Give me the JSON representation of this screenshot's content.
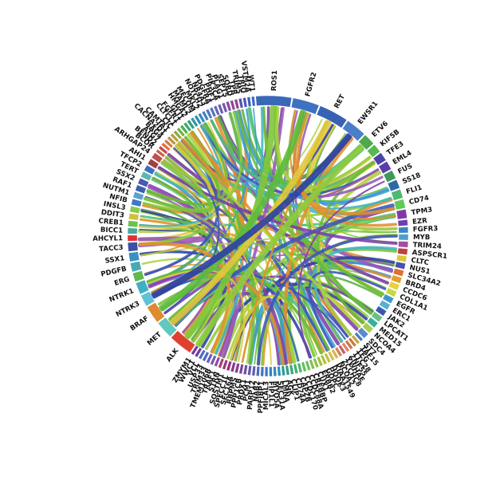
{
  "diagram": {
    "type": "chord",
    "segments": [
      {
        "name": "ROS1",
        "color": "#3a68b8",
        "weight": 12
      },
      {
        "name": "FGFR2",
        "color": "#3d72c0",
        "weight": 9
      },
      {
        "name": "RET",
        "color": "#3a62b4",
        "weight": 10
      },
      {
        "name": "EWSR1",
        "color": "#4a7ec8",
        "weight": 7
      },
      {
        "name": "ETV6",
        "color": "#4ea94c",
        "weight": 4
      },
      {
        "name": "KIF5B",
        "color": "#58b850",
        "weight": 3
      },
      {
        "name": "TFE3",
        "color": "#4a42a8",
        "weight": 3
      },
      {
        "name": "EML4",
        "color": "#5a3ea8",
        "weight": 3
      },
      {
        "name": "FUS",
        "color": "#3c9a5a",
        "weight": 3
      },
      {
        "name": "SS18",
        "color": "#2c6aa6",
        "weight": 3
      },
      {
        "name": "FLI1",
        "color": "#4db870",
        "weight": 3
      },
      {
        "name": "CD74",
        "color": "#5fcb50",
        "weight": 3
      },
      {
        "name": "TPM3",
        "color": "#7f3aa6",
        "weight": 3
      },
      {
        "name": "EZR",
        "color": "#6a3fae",
        "weight": 2
      },
      {
        "name": "FGFR3",
        "color": "#3a86c4",
        "weight": 2
      },
      {
        "name": "MYB",
        "color": "#4aa0c8",
        "weight": 2
      },
      {
        "name": "TRIM24",
        "color": "#a04fa0",
        "weight": 2
      },
      {
        "name": "ASPSCR1",
        "color": "#c04040",
        "weight": 2
      },
      {
        "name": "CLTC",
        "color": "#d9c83a",
        "weight": 2
      },
      {
        "name": "NUS1",
        "color": "#4a50b0",
        "weight": 2
      },
      {
        "name": "SLC34A2",
        "color": "#e07030",
        "weight": 2
      },
      {
        "name": "BRD4",
        "color": "#e0a030",
        "weight": 2
      },
      {
        "name": "CCDC6",
        "color": "#e8d040",
        "weight": 2
      },
      {
        "name": "COL1A1",
        "color": "#c8d840",
        "weight": 2
      },
      {
        "name": "EGFR",
        "color": "#3a9ac8",
        "weight": 2
      },
      {
        "name": "ERC1",
        "color": "#5ab0d0",
        "weight": 2
      },
      {
        "name": "JAK2",
        "color": "#3a58b0",
        "weight": 2
      },
      {
        "name": "LPCAT1",
        "color": "#6ac080",
        "weight": 2
      },
      {
        "name": "MED15",
        "color": "#3ab0a0",
        "weight": 2
      },
      {
        "name": "NCOA4",
        "color": "#a8d050",
        "weight": 2
      },
      {
        "name": "SDC4",
        "color": "#5a8ad0",
        "weight": 2
      },
      {
        "name": "ST7",
        "color": "#4080c0",
        "weight": 1
      },
      {
        "name": "TAF15",
        "color": "#d0a040",
        "weight": 1
      },
      {
        "name": "TFG",
        "color": "#c08040",
        "weight": 1
      },
      {
        "name": "TTC28",
        "color": "#d07050",
        "weight": 1
      },
      {
        "name": "ZNF55",
        "color": "#e08060",
        "weight": 1
      },
      {
        "name": "YWHAE",
        "color": "#c06070",
        "weight": 1
      },
      {
        "name": "ZCCHC8",
        "color": "#d08050",
        "weight": 1
      },
      {
        "name": "NCOA2",
        "color": "#e0b050",
        "weight": 1
      },
      {
        "name": "KIAA1549",
        "color": "#d0c050",
        "weight": 1
      },
      {
        "name": "HOOK3",
        "color": "#c0c040",
        "weight": 1
      },
      {
        "name": "GOPC",
        "color": "#b0c040",
        "weight": 1
      },
      {
        "name": "ERBB2",
        "color": "#a0c040",
        "weight": 1
      },
      {
        "name": "CUX1",
        "color": "#90c048",
        "weight": 1
      },
      {
        "name": "CREBBP",
        "color": "#80c050",
        "weight": 1
      },
      {
        "name": "CCDC88A",
        "color": "#70c058",
        "weight": 1
      },
      {
        "name": "CCDC170",
        "color": "#60c060",
        "weight": 1
      },
      {
        "name": "CAPZB",
        "color": "#50b868",
        "weight": 1
      },
      {
        "name": "CD74A",
        "color": "#40b070",
        "weight": 1
      },
      {
        "name": "CLIP1",
        "color": "#38a878",
        "weight": 1
      },
      {
        "name": "AGK",
        "color": "#30a080",
        "weight": 1
      },
      {
        "name": "LMNA",
        "color": "#3098a0",
        "weight": 1
      },
      {
        "name": "SEC31A",
        "color": "#3090b0",
        "weight": 1
      },
      {
        "name": "MYO5A",
        "color": "#3088c0",
        "weight": 1
      },
      {
        "name": "FIP1L1",
        "color": "#3080c8",
        "weight": 1
      },
      {
        "name": "MICAL3",
        "color": "#3a78c8",
        "weight": 1
      },
      {
        "name": "PPFIBP1",
        "color": "#4470c0",
        "weight": 1
      },
      {
        "name": "NAB2",
        "color": "#4e68b8",
        "weight": 1
      },
      {
        "name": "PARP12",
        "color": "#5860b0",
        "weight": 1
      },
      {
        "name": "PCM1",
        "color": "#6258a8",
        "weight": 1
      },
      {
        "name": "PRDX1",
        "color": "#6c50a0",
        "weight": 1
      },
      {
        "name": "PPP1CB",
        "color": "#764898",
        "weight": 1
      },
      {
        "name": "RBPMS",
        "color": "#804090",
        "weight": 1
      },
      {
        "name": "SEC16A",
        "color": "#8a3888",
        "weight": 1
      },
      {
        "name": "SPECC1L",
        "color": "#943080",
        "weight": 1
      },
      {
        "name": "SQSTM1",
        "color": "#9e3878",
        "weight": 1
      },
      {
        "name": "STRN",
        "color": "#a84070",
        "weight": 1
      },
      {
        "name": "TRAF1",
        "color": "#8850a8",
        "weight": 1
      },
      {
        "name": "TMEM106B",
        "color": "#7858b0",
        "weight": 1
      },
      {
        "name": "TRIM33",
        "color": "#6860b8",
        "weight": 1
      },
      {
        "name": "USP33",
        "color": "#5868c0",
        "weight": 1
      },
      {
        "name": "VCL",
        "color": "#4870c8",
        "weight": 1
      },
      {
        "name": "WWC1",
        "color": "#6a40a0",
        "weight": 1
      },
      {
        "name": "ZMYM1",
        "color": "#7a38a0",
        "weight": 1
      },
      {
        "name": "ALK",
        "color": "#e04030",
        "weight": 8
      },
      {
        "name": "MET",
        "color": "#60c8c0",
        "weight": 6
      },
      {
        "name": "BRAF",
        "color": "#e08a30",
        "weight": 6
      },
      {
        "name": "NTRK3",
        "color": "#60c0d8",
        "weight": 4
      },
      {
        "name": "NTRK1",
        "color": "#40b0c0",
        "weight": 4
      },
      {
        "name": "ERG",
        "color": "#60b850",
        "weight": 3
      },
      {
        "name": "PDGFB",
        "color": "#48a8b8",
        "weight": 3
      },
      {
        "name": "SSX1",
        "color": "#3a90c0",
        "weight": 3
      },
      {
        "name": "TACC3",
        "color": "#3a50a8",
        "weight": 3
      },
      {
        "name": "AHCYL1",
        "color": "#e03030",
        "weight": 2
      },
      {
        "name": "BICC1",
        "color": "#4aa8a0",
        "weight": 2
      },
      {
        "name": "CREB1",
        "color": "#6ac050",
        "weight": 2
      },
      {
        "name": "DDIT3",
        "color": "#d0c040",
        "weight": 2
      },
      {
        "name": "INSL3",
        "color": "#8ac850",
        "weight": 2
      },
      {
        "name": "NFIB",
        "color": "#3a7cc0",
        "weight": 2
      },
      {
        "name": "NUTM1",
        "color": "#5aa0d0",
        "weight": 2
      },
      {
        "name": "RAF1",
        "color": "#3a60b0",
        "weight": 2
      },
      {
        "name": "SSX2",
        "color": "#4a58b0",
        "weight": 2
      },
      {
        "name": "TERT",
        "color": "#5ab8b0",
        "weight": 2
      },
      {
        "name": "TFCP2",
        "color": "#3a70c0",
        "weight": 2
      },
      {
        "name": "AHI1",
        "color": "#a04040",
        "weight": 2
      },
      {
        "name": "ARHGAP24",
        "color": "#c05050",
        "weight": 2
      },
      {
        "name": "BCOR",
        "color": "#d06040",
        "weight": 1
      },
      {
        "name": "BEND2",
        "color": "#c04848",
        "weight": 1
      },
      {
        "name": "ATG7",
        "color": "#e07040",
        "weight": 1
      },
      {
        "name": "BAG4",
        "color": "#d08040",
        "weight": 1
      },
      {
        "name": "CACNA2D1",
        "color": "#c09040",
        "weight": 1
      },
      {
        "name": "CAMTA1",
        "color": "#b0a040",
        "weight": 1
      },
      {
        "name": "CIC",
        "color": "#90a840",
        "weight": 1
      },
      {
        "name": "CLTCL1",
        "color": "#70b048",
        "weight": 1
      },
      {
        "name": "FGFR1",
        "color": "#50b050",
        "weight": 1
      },
      {
        "name": "GLI1",
        "color": "#40a868",
        "weight": 1
      },
      {
        "name": "HMGA2",
        "color": "#30a080",
        "weight": 1
      },
      {
        "name": "MAML2",
        "color": "#3098a0",
        "weight": 1
      },
      {
        "name": "MECOM",
        "color": "#3090b8",
        "weight": 1
      },
      {
        "name": "MKL2",
        "color": "#3a88c0",
        "weight": 1
      },
      {
        "name": "NOTCH2",
        "color": "#4480c0",
        "weight": 1
      },
      {
        "name": "NR4A3",
        "color": "#4e78c0",
        "weight": 1
      },
      {
        "name": "PDGFRA",
        "color": "#5870c0",
        "weight": 1
      },
      {
        "name": "PHF1",
        "color": "#6268b8",
        "weight": 1
      },
      {
        "name": "PIK3CA",
        "color": "#6c60b0",
        "weight": 1
      },
      {
        "name": "PLAG1",
        "color": "#7658a8",
        "weight": 1
      },
      {
        "name": "SEPT5",
        "color": "#8050a0",
        "weight": 1
      },
      {
        "name": "SORD",
        "color": "#8a4898",
        "weight": 1
      },
      {
        "name": "TPR",
        "color": "#944090",
        "weight": 1
      },
      {
        "name": "TRIM5",
        "color": "#5a50b0",
        "weight": 1
      },
      {
        "name": "TRIO",
        "color": "#4a58b8",
        "weight": 1
      },
      {
        "name": "VSTM2A",
        "color": "#3a60c0",
        "weight": 1
      },
      {
        "name": "WT1",
        "color": "#3a68c8",
        "weight": 1
      }
    ],
    "ribbon_colors": [
      "#66bb3a",
      "#79c23a",
      "#58b045",
      "#8ecb3c",
      "#2e3fa4",
      "#3b55b8",
      "#43b5c4",
      "#3a9bd0",
      "#e0c93a",
      "#e3902c",
      "#7b3fa8",
      "#4cc07a",
      "#a8d23c",
      "#9a55b8"
    ]
  }
}
